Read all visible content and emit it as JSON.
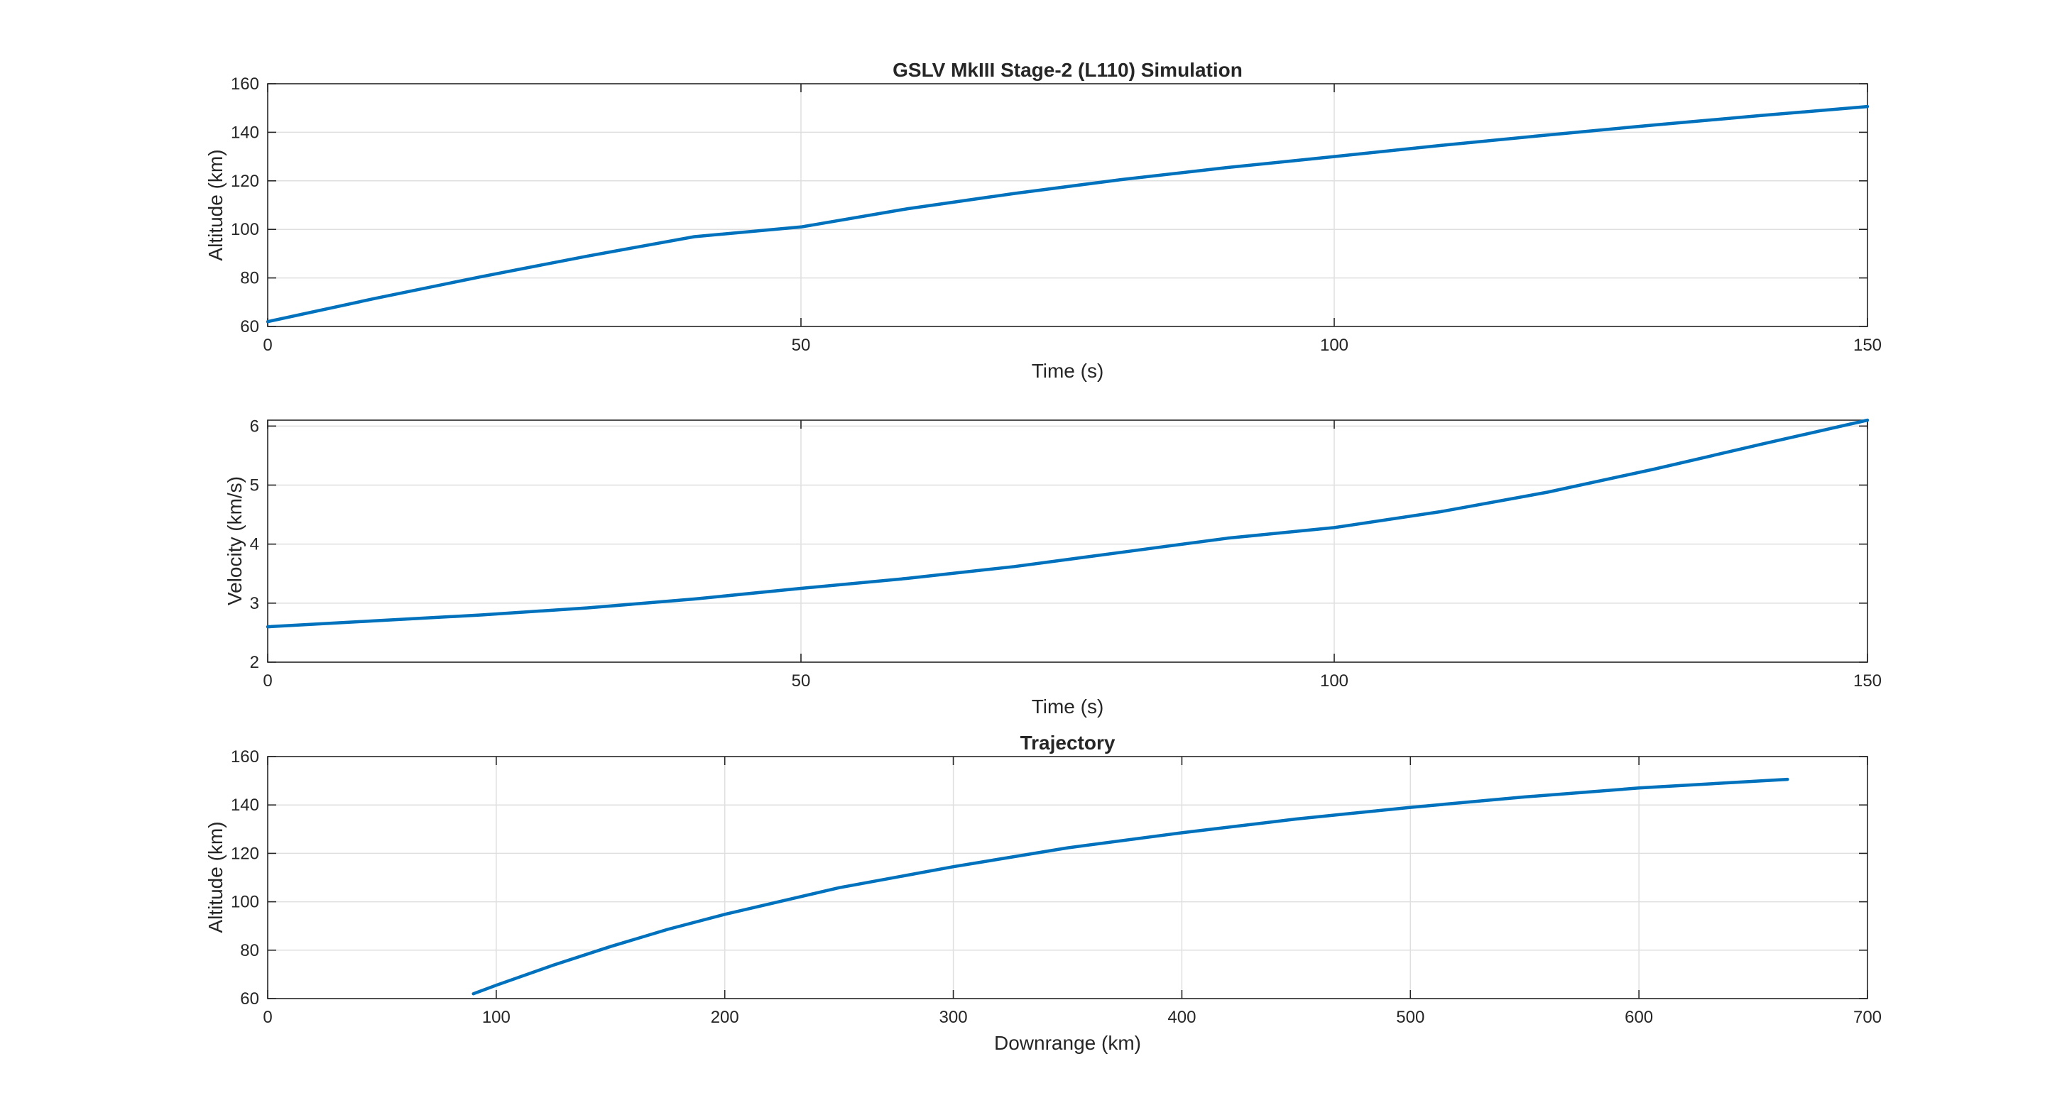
{
  "figure": {
    "chart_data": [
      {
        "type": "line",
        "title": "GSLV MkIII Stage-2 (L110) Simulation",
        "xlabel": "Time (s)",
        "ylabel": "Altitude (km)",
        "xlim": [
          0,
          150
        ],
        "ylim": [
          60,
          160
        ],
        "xticks": [
          0,
          50,
          100,
          150
        ],
        "yticks": [
          60,
          80,
          100,
          120,
          140,
          160
        ],
        "grid": true,
        "series": [
          {
            "color": "#0072bd",
            "x": [
              0,
              10,
              20,
              30,
              40,
              50,
              60,
              70,
              80,
              90,
              100,
              110,
              120,
              130,
              140,
              150
            ],
            "y": [
              62,
              71.5,
              80.5,
              89,
              97,
              101,
              108.5,
              114.8,
              120.5,
              125.5,
              130,
              134.6,
              138.9,
              143,
              146.9,
              150.6
            ]
          }
        ]
      },
      {
        "type": "line",
        "title": "",
        "xlabel": "Time (s)",
        "ylabel": "Velocity (km/s)",
        "xlim": [
          0,
          150
        ],
        "ylim": [
          2,
          6.1
        ],
        "xticks": [
          0,
          50,
          100,
          150
        ],
        "yticks": [
          2,
          3,
          4,
          5,
          6
        ],
        "grid": true,
        "series": [
          {
            "color": "#0072bd",
            "x": [
              0,
              10,
              20,
              30,
              40,
              50,
              60,
              70,
              80,
              90,
              100,
              110,
              120,
              130,
              140,
              150
            ],
            "y": [
              2.6,
              2.7,
              2.8,
              2.92,
              3.07,
              3.25,
              3.42,
              3.62,
              3.86,
              4.1,
              4.28,
              4.55,
              4.88,
              5.27,
              5.69,
              6.1
            ]
          }
        ]
      },
      {
        "type": "line",
        "title": "Trajectory",
        "xlabel": "Downrange (km)",
        "ylabel": "Altitude (km)",
        "xlim": [
          0,
          700
        ],
        "ylim": [
          60,
          160
        ],
        "xticks": [
          0,
          100,
          200,
          300,
          400,
          500,
          600,
          700
        ],
        "yticks": [
          60,
          80,
          100,
          120,
          140,
          160
        ],
        "grid": true,
        "series": [
          {
            "color": "#0072bd",
            "x": [
              90,
              100,
              125,
              150,
              175,
              200,
              250,
              300,
              350,
              400,
              450,
              500,
              550,
              600,
              665
            ],
            "y": [
              62,
              65.5,
              73.8,
              81.5,
              88.6,
              94.8,
              105.8,
              114.5,
              122.3,
              128.5,
              134.2,
              139,
              143.3,
              147,
              150.6
            ]
          }
        ]
      }
    ]
  }
}
